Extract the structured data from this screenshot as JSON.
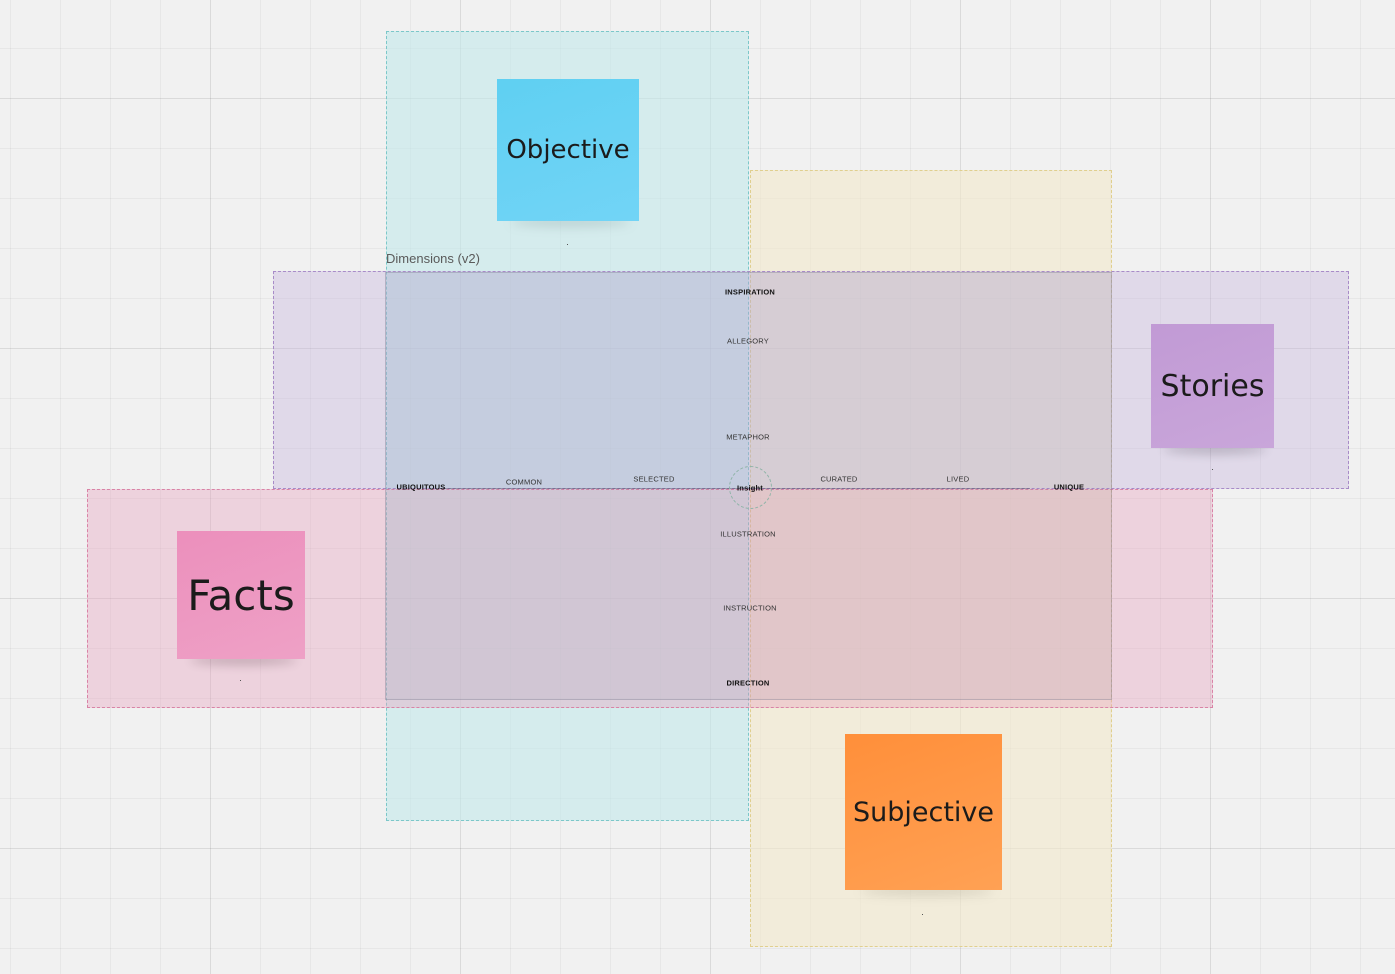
{
  "board": {
    "frame_title": "Dimensions (v2)"
  },
  "stickies": {
    "objective": "Objective",
    "stories": "Stories",
    "facts": "Facts",
    "subjective": "Subjective"
  },
  "vertical_axis": {
    "inspiration": "INSPIRATION",
    "allegory": "ALLEGORY",
    "metaphor": "METAPHOR",
    "illustration": "ILLUSTRATION",
    "instruction": "INSTRUCTION",
    "direction": "DIRECTION"
  },
  "horizontal_axis": {
    "ubiquitous": "UBIQUITOUS",
    "common": "COMMON",
    "selected": "SELECTED",
    "insight": "Insight",
    "curated": "CURATED",
    "lived": "LIVED",
    "unique": "UNIQUE"
  },
  "colors": {
    "objective": "#64d1f4",
    "stories": "#c49fd8",
    "facts": "#ed96c0",
    "subjective": "#ff9646",
    "frame_teal": "#c4e8ea",
    "frame_yellow": "#f2e8cc",
    "frame_purple": "#c4b2de",
    "frame_pink": "#e7a0be"
  }
}
